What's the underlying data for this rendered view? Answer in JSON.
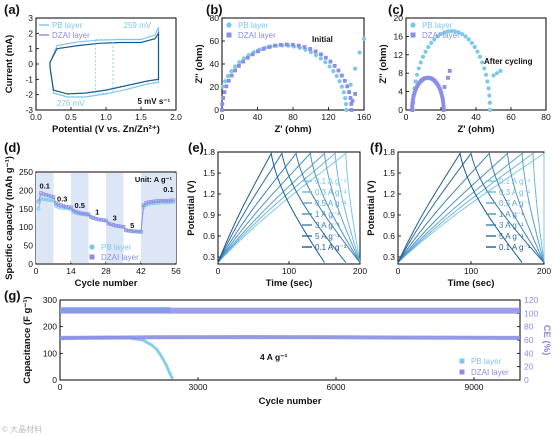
{
  "colors": {
    "pb": "#7cc8ec",
    "dzai": "#8b8de6",
    "dark_blue": "#1a5a94",
    "band": "#dde6f7",
    "ce_color": "#8b8de6",
    "text": "#111111"
  },
  "panel_labels": [
    "(a)",
    "(b)",
    "(c)",
    "(d)",
    "(e)",
    "(f)",
    "(g)"
  ],
  "watermark": "© 大晶材料",
  "chart_data": [
    {
      "panel": "a",
      "type": "line",
      "xlabel": "Potential (V vs. Zn/Zn²⁺)",
      "ylabel": "Current (mA)",
      "xlim": [
        0.0,
        2.0
      ],
      "ylim": [
        -3,
        3
      ],
      "xticks": [
        "0.0",
        "0.5",
        "1.0",
        "1.5",
        "2.0"
      ],
      "yticks": [
        "-3",
        "-2",
        "-1",
        "0",
        "1",
        "2",
        "3"
      ],
      "legend": [
        "PB layer",
        "DZAI layer"
      ],
      "annotations": [
        "259 mV",
        "276 mV",
        "5 mV s⁻¹"
      ],
      "series": [
        {
          "name": "PB layer",
          "upper": [
            [
              0.2,
              0.1
            ],
            [
              0.3,
              1.2
            ],
            [
              0.6,
              1.45
            ],
            [
              0.9,
              1.55
            ],
            [
              1.2,
              1.6
            ],
            [
              1.5,
              1.6
            ],
            [
              1.7,
              1.9
            ],
            [
              1.75,
              2.4
            ]
          ],
          "lower": [
            [
              0.2,
              -0.2
            ],
            [
              0.25,
              -1.9
            ],
            [
              0.45,
              -2.15
            ],
            [
              0.7,
              -2.15
            ],
            [
              1.0,
              -1.95
            ],
            [
              1.3,
              -1.65
            ],
            [
              1.6,
              -1.3
            ],
            [
              1.75,
              -1.2
            ]
          ]
        },
        {
          "name": "DZAI layer",
          "upper": [
            [
              0.2,
              0.1
            ],
            [
              0.3,
              1.0
            ],
            [
              0.6,
              1.2
            ],
            [
              0.9,
              1.35
            ],
            [
              1.2,
              1.4
            ],
            [
              1.5,
              1.4
            ],
            [
              1.7,
              1.65
            ],
            [
              1.75,
              2.0
            ]
          ],
          "lower": [
            [
              0.2,
              -0.2
            ],
            [
              0.25,
              -1.7
            ],
            [
              0.45,
              -1.95
            ],
            [
              0.7,
              -1.9
            ],
            [
              1.0,
              -1.7
            ],
            [
              1.3,
              -1.4
            ],
            [
              1.6,
              -1.1
            ],
            [
              1.75,
              -1.0
            ]
          ]
        }
      ]
    },
    {
      "panel": "b",
      "type": "scatter",
      "xlabel": "Z' (ohm)",
      "ylabel": "Z'' (ohm)",
      "xlim": [
        0,
        160
      ],
      "ylim": [
        0,
        80
      ],
      "xticks": [
        "0",
        "40",
        "80",
        "120",
        "160"
      ],
      "yticks": [
        "0",
        "20",
        "40",
        "60",
        "80"
      ],
      "legend": [
        "PB layer",
        "DZAI layer"
      ],
      "annotations": [
        "Initial"
      ],
      "series": [
        {
          "name": "PB layer",
          "center": 68,
          "radius": 72,
          "start": 0,
          "tail": [
            [
              145,
              22
            ],
            [
              150,
              36
            ],
            [
              155,
              50
            ],
            [
              160,
              62
            ]
          ]
        },
        {
          "name": "DZAI layer",
          "center": 73,
          "radius": 73,
          "start": 0,
          "tail": [
            [
              147,
              8
            ],
            [
              150,
              14
            ]
          ]
        }
      ]
    },
    {
      "panel": "c",
      "type": "scatter",
      "xlabel": "Z' (ohm)",
      "ylabel": "Z'' (ohm)",
      "xlim": [
        0,
        80
      ],
      "ylim": [
        0,
        20
      ],
      "xticks": [
        "0",
        "20",
        "40",
        "60",
        "80"
      ],
      "yticks": [
        "0",
        "4",
        "8",
        "12",
        "16",
        "20"
      ],
      "legend": [
        "PB layer",
        "DZAI layer"
      ],
      "annotations": [
        "After cycling"
      ],
      "series": [
        {
          "name": "PB layer",
          "center": 26,
          "radius": 22,
          "start": 4,
          "tail": [
            [
              50,
              7.5
            ],
            [
              52,
              8
            ],
            [
              54,
              8.5
            ]
          ]
        },
        {
          "name": "DZAI layer",
          "center": 12.5,
          "radius": 9,
          "start": 3.5,
          "tail": [
            [
              22,
              5
            ],
            [
              24,
              7
            ],
            [
              25,
              8.5
            ]
          ]
        }
      ]
    },
    {
      "panel": "d",
      "type": "line",
      "xlabel": "Cycle number",
      "ylabel": "Specific capacity (mAh g⁻¹)",
      "xlim": [
        0,
        56
      ],
      "ylim": [
        0,
        250
      ],
      "xticks": [
        "0",
        "14",
        "28",
        "42",
        "56"
      ],
      "yticks": [
        "0",
        "50",
        "100",
        "150",
        "200",
        "250"
      ],
      "legend": [
        "PB layer",
        "DZAI layer"
      ],
      "annotations": [
        "Unit: A g⁻¹",
        "0.1",
        "0.3",
        "0.5",
        "1",
        "3",
        "5",
        "0.1"
      ],
      "series": [
        {
          "name": "PB layer",
          "x": [
            1,
            2,
            3,
            4,
            5,
            6,
            7,
            8,
            9,
            10,
            11,
            12,
            13,
            14,
            15,
            16,
            17,
            18,
            19,
            20,
            21,
            22,
            23,
            24,
            25,
            26,
            27,
            28,
            29,
            30,
            31,
            32,
            33,
            34,
            35,
            36,
            37,
            38,
            39,
            40,
            41,
            42,
            43,
            44,
            45,
            46,
            47,
            48,
            49,
            50,
            51,
            52,
            53,
            54,
            55
          ],
          "values": [
            150,
            178,
            176,
            175,
            174,
            173,
            172,
            158,
            155,
            153,
            152,
            151,
            150,
            149,
            141,
            139,
            137,
            136,
            135,
            134,
            133,
            127,
            125,
            123,
            121,
            120,
            119,
            118,
            110,
            108,
            106,
            104,
            103,
            102,
            101,
            91,
            90,
            89,
            88,
            88,
            87,
            87,
            155,
            160,
            163,
            164,
            165,
            166,
            166,
            167,
            167,
            167,
            167,
            168,
            168
          ]
        },
        {
          "name": "DZAI layer",
          "x": [
            1,
            2,
            3,
            4,
            5,
            6,
            7,
            8,
            9,
            10,
            11,
            12,
            13,
            14,
            15,
            16,
            17,
            18,
            19,
            20,
            21,
            22,
            23,
            24,
            25,
            26,
            27,
            28,
            29,
            30,
            31,
            32,
            33,
            34,
            35,
            36,
            37,
            38,
            39,
            40,
            41,
            42,
            43,
            44,
            45,
            46,
            47,
            48,
            49,
            50,
            51,
            52,
            53,
            54,
            55
          ],
          "values": [
            170,
            193,
            190,
            188,
            186,
            184,
            182,
            165,
            162,
            160,
            158,
            156,
            155,
            154,
            145,
            142,
            140,
            138,
            137,
            136,
            135,
            128,
            125,
            123,
            121,
            120,
            119,
            118,
            110,
            108,
            106,
            104,
            103,
            102,
            101,
            92,
            91,
            90,
            89,
            89,
            88,
            88,
            160,
            166,
            168,
            169,
            170,
            171,
            171,
            172,
            172,
            172,
            172,
            173,
            173
          ]
        }
      ]
    },
    {
      "panel": "e",
      "type": "line",
      "xlabel": "Time (sec)",
      "ylabel": "Potential (V)",
      "xlim": [
        0,
        200
      ],
      "ylim": [
        0.2,
        1.8
      ],
      "xticks": [
        "0",
        "100",
        "200"
      ],
      "yticks": [
        "0.3",
        "0.6",
        "0.9",
        "1.2",
        "1.5",
        "1.8"
      ],
      "legend": [
        "0.1 A g⁻¹",
        "0.3 A g⁻¹",
        "0.5 A g⁻¹",
        "1 A g⁻¹",
        "3 A g⁻¹",
        "5 A g⁻¹",
        "0.1 A g⁻¹"
      ],
      "series": [
        {
          "name": "0.1 A g⁻¹",
          "peak": 180,
          "end": 200
        },
        {
          "name": "0.3 A g⁻¹",
          "peak": 165,
          "end": 200
        },
        {
          "name": "0.5 A g⁻¹",
          "peak": 150,
          "end": 200
        },
        {
          "name": "1 A g⁻¹",
          "peak": 130,
          "end": 200
        },
        {
          "name": "3 A g⁻¹",
          "peak": 110,
          "end": 200
        },
        {
          "name": "5 A g⁻¹",
          "peak": 90,
          "end": 180
        },
        {
          "name": "0.1 A g⁻¹",
          "peak": 75,
          "end": 150
        }
      ]
    },
    {
      "panel": "f",
      "type": "line",
      "xlabel": "Time (sec)",
      "ylabel": "Potential (V)",
      "xlim": [
        0,
        200
      ],
      "ylim": [
        0.2,
        1.8
      ],
      "xticks": [
        "0",
        "100",
        "200"
      ],
      "yticks": [
        "0.3",
        "0.6",
        "0.9",
        "1.2",
        "1.5",
        "1.8"
      ],
      "legend": [
        "0.1 A g⁻¹",
        "0.3 A g⁻¹",
        "0.5 A g⁻¹",
        "1 A g⁻¹",
        "3 A g⁻¹",
        "5 A g⁻¹",
        "0.1 A g⁻¹"
      ],
      "series": [
        {
          "name": "0.1 A g⁻¹",
          "peak": 200,
          "end": 200
        },
        {
          "name": "0.3 A g⁻¹",
          "peak": 185,
          "end": 200
        },
        {
          "name": "0.5 A g⁻¹",
          "peak": 170,
          "end": 200
        },
        {
          "name": "1 A g⁻¹",
          "peak": 150,
          "end": 200
        },
        {
          "name": "3 A g⁻¹",
          "peak": 125,
          "end": 200
        },
        {
          "name": "5 A g⁻¹",
          "peak": 100,
          "end": 200
        },
        {
          "name": "0.1 A g⁻¹",
          "peak": 85,
          "end": 170
        }
      ]
    },
    {
      "panel": "g",
      "type": "scatter",
      "xlabel": "Cycle number",
      "ylabel": "Capacitance (F g⁻¹)",
      "ylabel_right": "CE (%)",
      "xlim": [
        0,
        10000
      ],
      "ylim": [
        0,
        300
      ],
      "ylim_right": [
        0,
        120
      ],
      "xticks": [
        "0",
        "3000",
        "6000",
        "9000"
      ],
      "yticks": [
        "0",
        "100",
        "200",
        "300"
      ],
      "yticks_right": [
        "0",
        "20",
        "40",
        "60",
        "80",
        "100",
        "120"
      ],
      "legend": [
        "PB layer",
        "DZAI layer"
      ],
      "annotations": [
        "4 A g⁻¹"
      ],
      "series": [
        {
          "name": "PB layer",
          "capacitance": [
            [
              0,
              155
            ],
            [
              500,
              158
            ],
            [
              1000,
              160
            ],
            [
              1500,
              158
            ],
            [
              1800,
              150
            ],
            [
              2000,
              130
            ],
            [
              2100,
              115
            ],
            [
              2200,
              90
            ],
            [
              2300,
              60
            ],
            [
              2350,
              40
            ],
            [
              2400,
              20
            ],
            [
              2450,
              5
            ]
          ],
          "ce": [
            [
              0,
              105
            ],
            [
              2400,
              105
            ]
          ]
        },
        {
          "name": "DZAI layer",
          "capacitance": [
            [
              0,
              158
            ],
            [
              2000,
              160
            ],
            [
              4000,
              161
            ],
            [
              6000,
              160
            ],
            [
              8000,
              159
            ],
            [
              10000,
              158
            ]
          ],
          "ce": [
            [
              0,
              104
            ],
            [
              10000,
              104
            ]
          ]
        }
      ]
    }
  ]
}
